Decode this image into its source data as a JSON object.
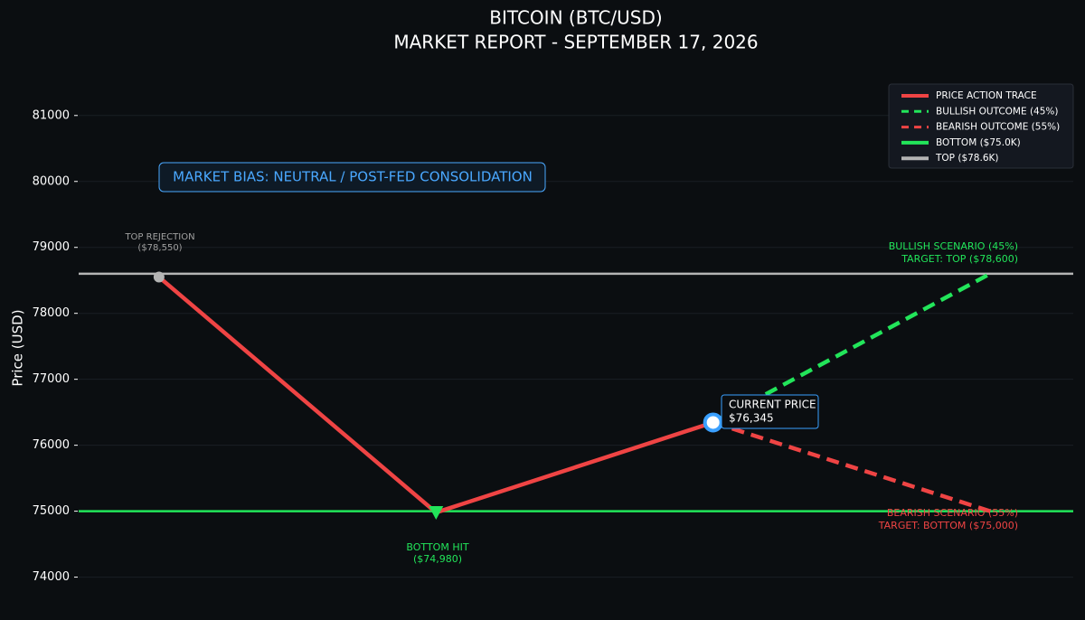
{
  "chart_data": {
    "type": "line",
    "title": [
      "BITCOIN (BTC/USD)",
      "MARKET REPORT - SEPTEMBER 17, 2026"
    ],
    "ylabel": "Price (USD)",
    "x": [
      0,
      1,
      2,
      3
    ],
    "xlim": [
      -0.29,
      3.3
    ],
    "ylim": [
      73350,
      81600
    ],
    "yticks": [
      74000,
      75000,
      76000,
      77000,
      78000,
      79000,
      80000,
      81000
    ],
    "grid": true,
    "legend": "upper right",
    "series": [
      {
        "name": "PRICE ACTION TRACE",
        "color": "#ef4444",
        "dashed": false,
        "values": [
          78550,
          74980,
          76345,
          null
        ]
      },
      {
        "name": "BULLISH OUTCOME (45%)",
        "color": "#22e55a",
        "dashed": true,
        "values": [
          null,
          null,
          76345,
          78600
        ]
      },
      {
        "name": "BEARISH OUTCOME (55%)",
        "color": "#ef4444",
        "dashed": true,
        "values": [
          null,
          null,
          76345,
          75000
        ]
      }
    ],
    "hlines": [
      {
        "name": "BOTTOM ($75.0K)",
        "color": "#22e55a",
        "value": 75000
      },
      {
        "name": "TOP ($78.6K)",
        "color": "#b4b4b4",
        "value": 78600
      }
    ],
    "annotations": [
      {
        "lines": [
          "MARKET BIAS: NEUTRAL / POST-FED CONSOLIDATION"
        ],
        "color": "#4aa8ff"
      },
      {
        "lines": [
          "TOP REJECTION",
          "($78,550)"
        ],
        "color": "#a0a0a0"
      },
      {
        "lines": [
          "BOTTOM HIT",
          "($74,980)"
        ],
        "color": "#22e55a"
      },
      {
        "lines": [
          "CURRENT PRICE",
          "$76,345"
        ],
        "color": "#ffffff"
      },
      {
        "lines": [
          "BULLISH SCENARIO (45%)",
          "TARGET: TOP ($78,600)"
        ],
        "color": "#22e55a"
      },
      {
        "lines": [
          "BEARISH SCENARIO (55%)",
          "TARGET: BOTTOM ($75,000)"
        ],
        "color": "#ef4444"
      }
    ]
  }
}
